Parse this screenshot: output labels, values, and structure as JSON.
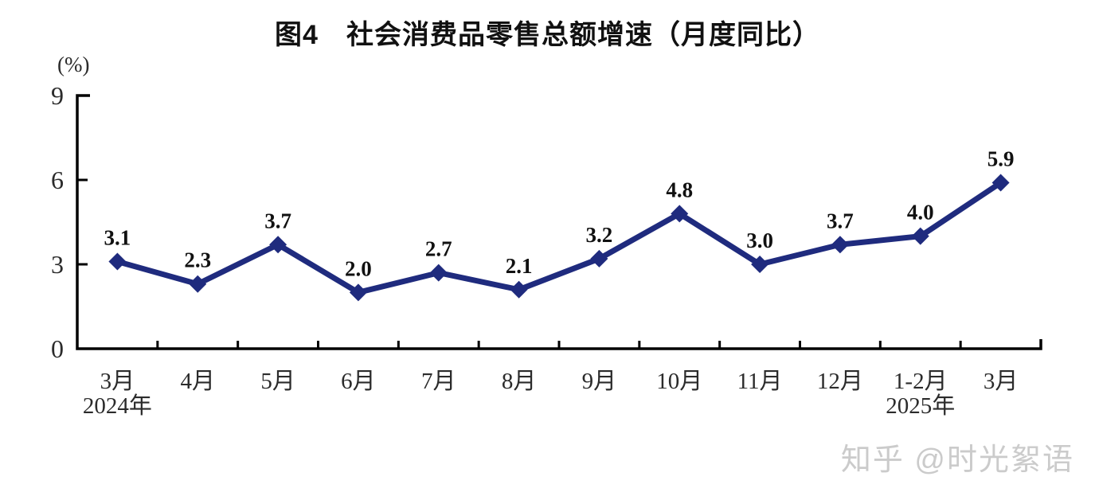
{
  "page": {
    "background": "#ffffff"
  },
  "chart": {
    "title": "图4　社会消费品零售总额增速（月度同比）",
    "unit_label": "(%)"
  },
  "chart_data": {
    "type": "line",
    "title": "图4　社会消费品零售总额增速（月度同比）",
    "ylabel": "(%)",
    "xlabel": "",
    "categories": [
      "3月",
      "4月",
      "5月",
      "6月",
      "7月",
      "8月",
      "9月",
      "10月",
      "11月",
      "12月",
      "1-2月",
      "3月"
    ],
    "sub_labels": [
      {
        "index": 0,
        "label": "2024年"
      },
      {
        "index": 10,
        "label": "2025年"
      }
    ],
    "series": [
      {
        "name": "社会消费品零售总额增速",
        "values": [
          3.1,
          2.3,
          3.7,
          2.0,
          2.7,
          2.1,
          3.2,
          4.8,
          3.0,
          3.7,
          4.0,
          5.9
        ],
        "labels": [
          "3.1",
          "2.3",
          "3.7",
          "2.0",
          "2.7",
          "2.1",
          "3.2",
          "4.8",
          "3.0",
          "3.7",
          "4.0",
          "5.9"
        ]
      }
    ],
    "y_ticks": [
      0,
      3,
      6,
      9
    ],
    "ylim": [
      0,
      9
    ],
    "grid": false,
    "legend": "none",
    "marker": "diamond",
    "colors": {
      "line": "#1f2b7e",
      "marker": "#1f2b7e",
      "axis": "#000000",
      "tick_text": "#2b2b2b",
      "value_text": "#111111"
    }
  },
  "watermark": {
    "text": "知乎 @时光絮语",
    "color": "#cbcbcb"
  }
}
